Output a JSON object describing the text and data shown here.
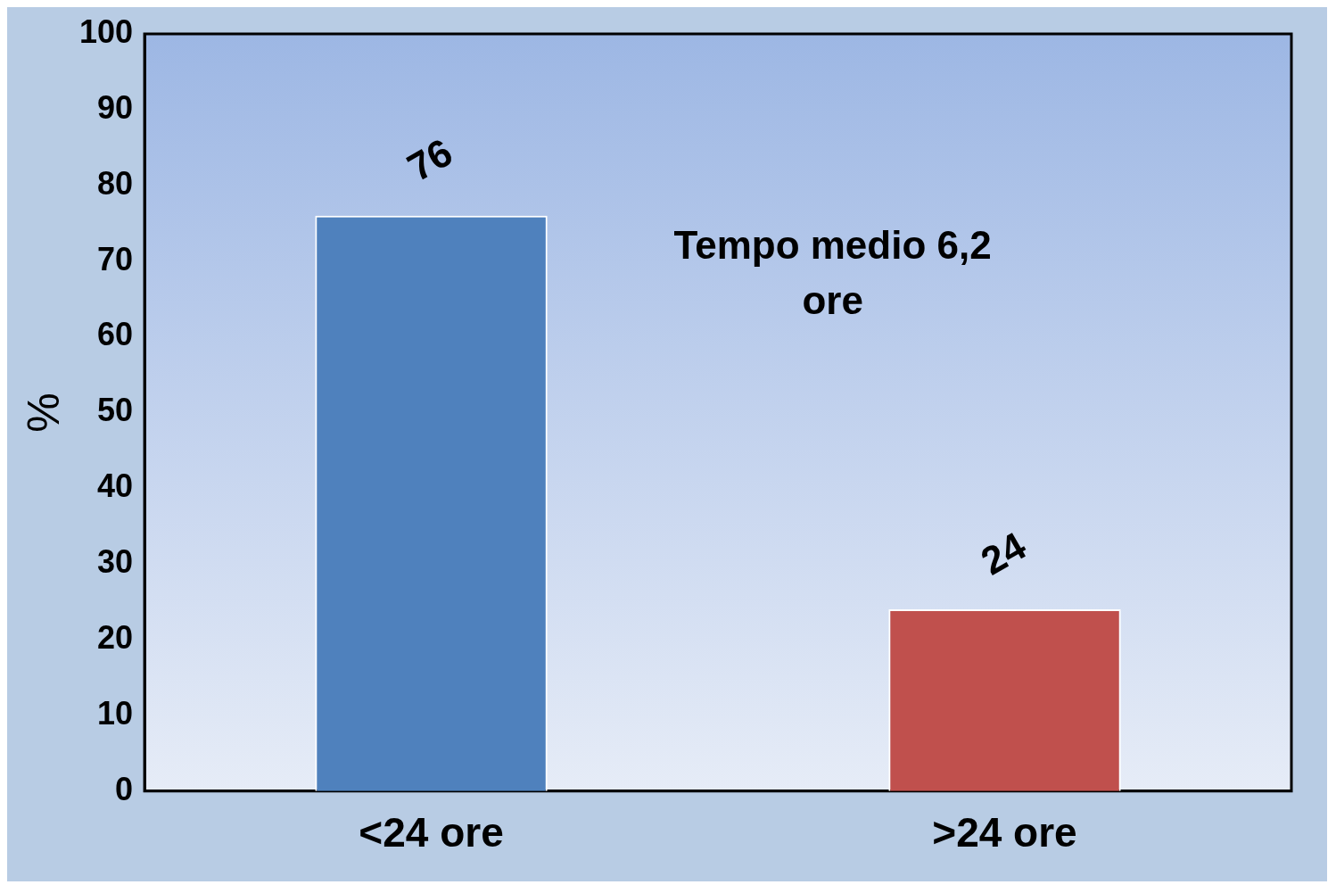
{
  "chart_data": {
    "type": "bar",
    "categories": [
      "<24 ore",
      ">24 ore"
    ],
    "values": [
      76,
      24
    ],
    "colors": [
      "#4f81bd",
      "#c0504d"
    ],
    "ylabel": "%",
    "ylim": [
      0,
      100
    ],
    "yticks": [
      0,
      10,
      20,
      30,
      40,
      50,
      60,
      70,
      80,
      90,
      100
    ],
    "data_labels": true,
    "annotations": [
      "Tempo medio 6,2 ore"
    ]
  }
}
